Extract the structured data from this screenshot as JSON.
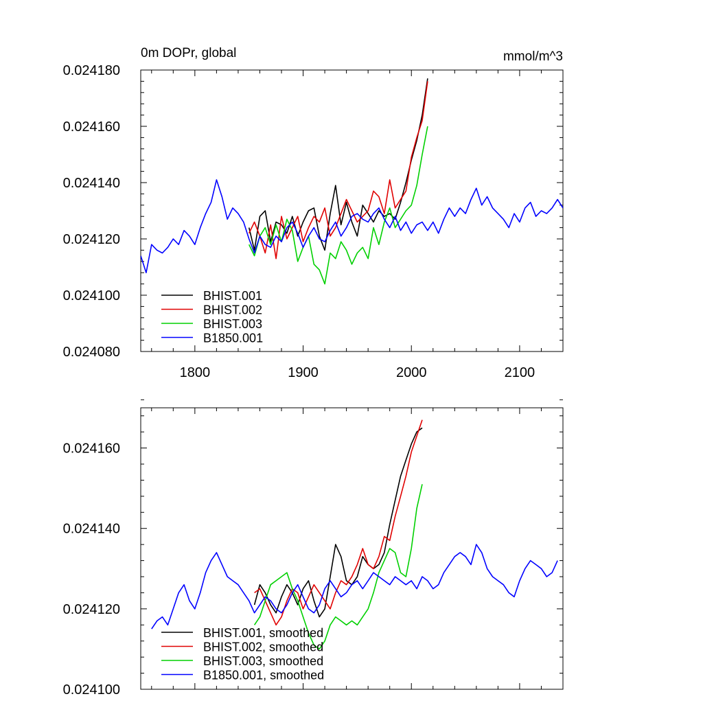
{
  "chart_data": [
    {
      "type": "line",
      "title_left": "0m DOPr, global",
      "title_right": "mmol/m^3",
      "xlim": [
        1750,
        2140
      ],
      "ylim": [
        0.02408,
        0.02418
      ],
      "yticks": [
        "0.024080",
        "0.024100",
        "0.024120",
        "0.024140",
        "0.024160",
        "0.024180"
      ],
      "xticks": [
        "1800",
        "1900",
        "2000",
        "2100"
      ],
      "legend_position": "bottom-left",
      "series": [
        {
          "name": "BHIST.001",
          "color": "#000000",
          "x": [
            1850,
            1855,
            1860,
            1865,
            1870,
            1875,
            1880,
            1885,
            1890,
            1895,
            1900,
            1905,
            1910,
            1915,
            1920,
            1925,
            1930,
            1935,
            1940,
            1945,
            1950,
            1955,
            1960,
            1965,
            1970,
            1975,
            1980,
            1985,
            1990,
            1995,
            2000,
            2005,
            2010,
            2015
          ],
          "y": [
            0.024124,
            0.024116,
            0.024128,
            0.02413,
            0.024119,
            0.024126,
            0.024125,
            0.024122,
            0.024128,
            0.024121,
            0.024126,
            0.02413,
            0.024131,
            0.024121,
            0.024116,
            0.024129,
            0.024139,
            0.024125,
            0.024133,
            0.024126,
            0.024121,
            0.024132,
            0.024129,
            0.024126,
            0.02413,
            0.024128,
            0.024129,
            0.024127,
            0.024133,
            0.02414,
            0.024148,
            0.024155,
            0.024164,
            0.024177
          ]
        },
        {
          "name": "BHIST.002",
          "color": "#e00000",
          "x": [
            1850,
            1855,
            1860,
            1865,
            1870,
            1875,
            1880,
            1885,
            1890,
            1895,
            1900,
            1905,
            1910,
            1915,
            1920,
            1925,
            1930,
            1935,
            1940,
            1945,
            1950,
            1955,
            1960,
            1965,
            1970,
            1975,
            1980,
            1985,
            1990,
            1995,
            2000,
            2005,
            2010,
            2015
          ],
          "y": [
            0.024122,
            0.024126,
            0.024121,
            0.024115,
            0.024125,
            0.024113,
            0.024128,
            0.02412,
            0.024124,
            0.024128,
            0.024119,
            0.024124,
            0.024128,
            0.024126,
            0.024131,
            0.024121,
            0.024124,
            0.024129,
            0.024134,
            0.02413,
            0.024126,
            0.024128,
            0.02413,
            0.024137,
            0.024135,
            0.024129,
            0.024141,
            0.024131,
            0.024134,
            0.024137,
            0.024149,
            0.024156,
            0.024162,
            0.024176
          ]
        },
        {
          "name": "BHIST.003",
          "color": "#00d000",
          "x": [
            1850,
            1855,
            1860,
            1865,
            1870,
            1875,
            1880,
            1885,
            1890,
            1895,
            1900,
            1905,
            1910,
            1915,
            1920,
            1925,
            1930,
            1935,
            1940,
            1945,
            1950,
            1955,
            1960,
            1965,
            1970,
            1975,
            1980,
            1985,
            1990,
            1995,
            2000,
            2005,
            2010,
            2015
          ],
          "y": [
            0.024118,
            0.024114,
            0.024121,
            0.024124,
            0.024118,
            0.024125,
            0.024119,
            0.024127,
            0.024123,
            0.024112,
            0.024117,
            0.024121,
            0.024111,
            0.024109,
            0.024104,
            0.024115,
            0.024113,
            0.024119,
            0.024116,
            0.024111,
            0.024115,
            0.024117,
            0.024113,
            0.024124,
            0.024118,
            0.024126,
            0.024131,
            0.024124,
            0.024127,
            0.02413,
            0.024132,
            0.024139,
            0.02415,
            0.02416
          ]
        },
        {
          "name": "B1850.001",
          "color": "#0000ff",
          "x": [
            1750,
            1755,
            1760,
            1765,
            1770,
            1775,
            1780,
            1785,
            1790,
            1795,
            1800,
            1805,
            1810,
            1815,
            1820,
            1825,
            1830,
            1835,
            1840,
            1845,
            1850,
            1855,
            1860,
            1865,
            1870,
            1875,
            1880,
            1885,
            1890,
            1895,
            1900,
            1905,
            1910,
            1915,
            1920,
            1925,
            1930,
            1935,
            1940,
            1945,
            1950,
            1955,
            1960,
            1965,
            1970,
            1975,
            1980,
            1985,
            1990,
            1995,
            2000,
            2005,
            2010,
            2015,
            2020,
            2025,
            2030,
            2035,
            2040,
            2045,
            2050,
            2055,
            2060,
            2065,
            2070,
            2075,
            2080,
            2085,
            2090,
            2095,
            2100,
            2105,
            2110,
            2115,
            2120,
            2125,
            2130,
            2135,
            2140
          ],
          "y": [
            0.024114,
            0.024108,
            0.024118,
            0.024116,
            0.024115,
            0.024117,
            0.02412,
            0.024118,
            0.024123,
            0.024121,
            0.024118,
            0.024124,
            0.024129,
            0.024133,
            0.024141,
            0.024135,
            0.024127,
            0.024131,
            0.024129,
            0.024126,
            0.02412,
            0.024115,
            0.024121,
            0.024118,
            0.024117,
            0.024121,
            0.024119,
            0.024124,
            0.024126,
            0.024122,
            0.024117,
            0.024121,
            0.024124,
            0.02412,
            0.024119,
            0.024123,
            0.024126,
            0.024121,
            0.024124,
            0.024128,
            0.024129,
            0.024127,
            0.024126,
            0.024129,
            0.024131,
            0.024127,
            0.024124,
            0.024128,
            0.024123,
            0.024126,
            0.024122,
            0.024125,
            0.024126,
            0.024123,
            0.024126,
            0.024122,
            0.024127,
            0.024131,
            0.024128,
            0.024131,
            0.024129,
            0.024134,
            0.024138,
            0.024132,
            0.024135,
            0.024131,
            0.024129,
            0.024127,
            0.024124,
            0.024129,
            0.024126,
            0.024131,
            0.024133,
            0.024128,
            0.02413,
            0.024129,
            0.024131,
            0.024134,
            0.024131
          ]
        }
      ]
    },
    {
      "type": "line",
      "xlim": [
        1750,
        2140
      ],
      "ylim": [
        0.0241,
        0.02417
      ],
      "yticks": [
        "0.024100",
        "0.024120",
        "0.024140",
        "0.024160"
      ],
      "legend_position": "bottom-left",
      "series": [
        {
          "name": "BHIST.001, smoothed",
          "color": "#000000",
          "x": [
            1855,
            1860,
            1865,
            1870,
            1875,
            1880,
            1885,
            1890,
            1895,
            1900,
            1905,
            1910,
            1915,
            1920,
            1925,
            1930,
            1935,
            1940,
            1945,
            1950,
            1955,
            1960,
            1965,
            1970,
            1975,
            1980,
            1985,
            1990,
            1995,
            2000,
            2005,
            2010
          ],
          "y": [
            0.024121,
            0.024126,
            0.024124,
            0.024121,
            0.024119,
            0.024123,
            0.024126,
            0.024124,
            0.024121,
            0.024125,
            0.024127,
            0.024122,
            0.024118,
            0.02412,
            0.024128,
            0.024136,
            0.024133,
            0.024127,
            0.024126,
            0.024128,
            0.024133,
            0.024131,
            0.02413,
            0.024131,
            0.024134,
            0.024141,
            0.024147,
            0.024153,
            0.024157,
            0.024161,
            0.024164,
            0.024165
          ]
        },
        {
          "name": "BHIST.002, smoothed",
          "color": "#e00000",
          "x": [
            1855,
            1860,
            1865,
            1870,
            1875,
            1880,
            1885,
            1890,
            1895,
            1900,
            1905,
            1910,
            1915,
            1920,
            1925,
            1930,
            1935,
            1940,
            1945,
            1950,
            1955,
            1960,
            1965,
            1970,
            1975,
            1980,
            1985,
            1990,
            1995,
            2000,
            2005,
            2010
          ],
          "y": [
            0.024124,
            0.024125,
            0.024122,
            0.024119,
            0.024116,
            0.024118,
            0.024122,
            0.024125,
            0.024124,
            0.02412,
            0.024123,
            0.024126,
            0.024124,
            0.024122,
            0.02412,
            0.024124,
            0.024127,
            0.024126,
            0.024128,
            0.024131,
            0.024135,
            0.024131,
            0.02413,
            0.024133,
            0.024138,
            0.024137,
            0.024143,
            0.024148,
            0.024153,
            0.024159,
            0.024163,
            0.024167
          ]
        },
        {
          "name": "BHIST.003, smoothed",
          "color": "#00d000",
          "x": [
            1855,
            1860,
            1865,
            1870,
            1875,
            1880,
            1885,
            1890,
            1895,
            1900,
            1905,
            1910,
            1915,
            1920,
            1925,
            1930,
            1935,
            1940,
            1945,
            1950,
            1955,
            1960,
            1965,
            1970,
            1975,
            1980,
            1985,
            1990,
            1995,
            2000,
            2005,
            2010
          ],
          "y": [
            0.024116,
            0.024118,
            0.024122,
            0.024126,
            0.024127,
            0.024128,
            0.024129,
            0.024125,
            0.024122,
            0.024118,
            0.024114,
            0.024111,
            0.02411,
            0.024112,
            0.024116,
            0.024118,
            0.024117,
            0.024116,
            0.024117,
            0.024116,
            0.024118,
            0.02412,
            0.024124,
            0.024129,
            0.024132,
            0.024135,
            0.024134,
            0.024129,
            0.024128,
            0.024135,
            0.024145,
            0.024151
          ]
        },
        {
          "name": "B1850.001, smoothed",
          "color": "#0000ff",
          "x": [
            1760,
            1765,
            1770,
            1775,
            1780,
            1785,
            1790,
            1795,
            1800,
            1805,
            1810,
            1815,
            1820,
            1825,
            1830,
            1835,
            1840,
            1845,
            1850,
            1855,
            1860,
            1865,
            1870,
            1875,
            1880,
            1885,
            1890,
            1895,
            1900,
            1905,
            1910,
            1915,
            1920,
            1925,
            1930,
            1935,
            1940,
            1945,
            1950,
            1955,
            1960,
            1965,
            1970,
            1975,
            1980,
            1985,
            1990,
            1995,
            2000,
            2005,
            2010,
            2015,
            2020,
            2025,
            2030,
            2035,
            2040,
            2045,
            2050,
            2055,
            2060,
            2065,
            2070,
            2075,
            2080,
            2085,
            2090,
            2095,
            2100,
            2105,
            2110,
            2115,
            2120,
            2125,
            2130,
            2135
          ],
          "y": [
            0.024115,
            0.024117,
            0.024118,
            0.024116,
            0.02412,
            0.024124,
            0.024126,
            0.024122,
            0.02412,
            0.024124,
            0.024129,
            0.024132,
            0.024134,
            0.024131,
            0.024128,
            0.024127,
            0.024126,
            0.024124,
            0.024122,
            0.024119,
            0.024121,
            0.024123,
            0.024122,
            0.02412,
            0.024119,
            0.024121,
            0.024124,
            0.024126,
            0.024123,
            0.02412,
            0.024119,
            0.024121,
            0.024125,
            0.024127,
            0.024125,
            0.024123,
            0.024124,
            0.024126,
            0.024127,
            0.024125,
            0.024127,
            0.024129,
            0.024128,
            0.024127,
            0.024126,
            0.024128,
            0.024127,
            0.024126,
            0.024127,
            0.024125,
            0.024128,
            0.024127,
            0.024125,
            0.024126,
            0.024129,
            0.024131,
            0.024133,
            0.024134,
            0.024133,
            0.024131,
            0.024136,
            0.024134,
            0.02413,
            0.024128,
            0.024127,
            0.024126,
            0.024124,
            0.024123,
            0.024127,
            0.02413,
            0.024132,
            0.024131,
            0.02413,
            0.024128,
            0.024129,
            0.024132
          ]
        }
      ]
    }
  ]
}
